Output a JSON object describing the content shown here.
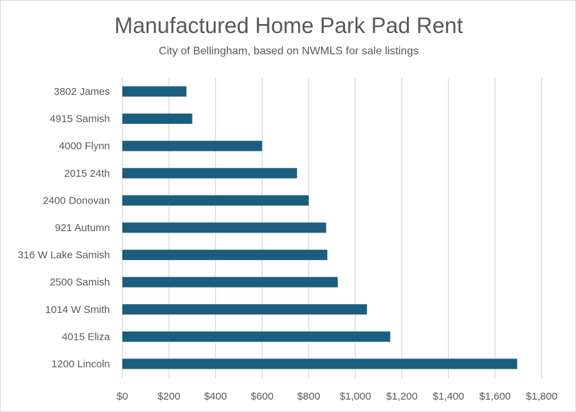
{
  "chart_data": {
    "type": "bar",
    "orientation": "horizontal",
    "title": "Manufactured Home Park Pad Rent",
    "subtitle": "City of Bellingham, based on NWMLS for sale listings",
    "xlabel": "",
    "ylabel": "",
    "categories": [
      "3802 James",
      "4915 Samish",
      "4000 Flynn",
      "2015 24th",
      "2400 Donovan",
      "921 Autumn",
      "316 W Lake Samish",
      "2500 Samish",
      "1014 W Smith",
      "4015 Eliza",
      "1200 Lincoln"
    ],
    "values": [
      275,
      300,
      600,
      750,
      800,
      875,
      880,
      925,
      1050,
      1150,
      1695
    ],
    "xlim": [
      0,
      1800
    ],
    "ticks": [
      0,
      200,
      400,
      600,
      800,
      1000,
      1200,
      1400,
      1600,
      1800
    ],
    "tick_labels": [
      "$0",
      "$200",
      "$400",
      "$600",
      "$800",
      "$1,000",
      "$1,200",
      "$1,400",
      "$1,600",
      "$1,800"
    ],
    "bar_color": "#1b5e80",
    "gridline_color": "#d9d9d9",
    "grid": true,
    "legend": "none"
  }
}
